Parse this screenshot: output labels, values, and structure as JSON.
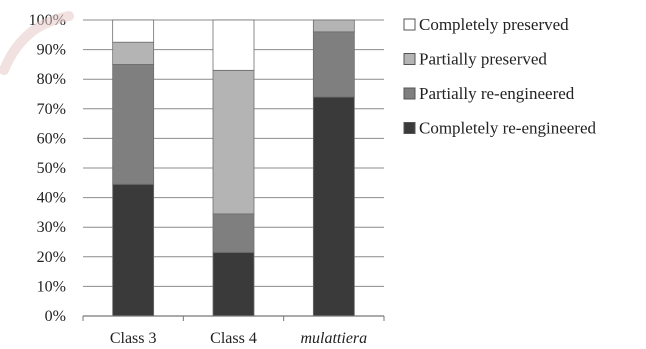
{
  "chart_data": {
    "type": "bar",
    "stacked": true,
    "percent": true,
    "categories": [
      "Class 3",
      "Class 4",
      "mulattiera"
    ],
    "category_styles": [
      "normal",
      "normal",
      "italic"
    ],
    "series": [
      {
        "name": "Completely re-engineered",
        "color": "#3a3a3a",
        "values": [
          44.5,
          21.5,
          74
        ]
      },
      {
        "name": "Partially re-engineered",
        "color": "#7f7f7f",
        "values": [
          40.5,
          13,
          22
        ]
      },
      {
        "name": "Partially preserved",
        "color": "#b4b4b4",
        "values": [
          7.5,
          48.5,
          4
        ]
      },
      {
        "name": "Completely preserved",
        "color": "#ffffff",
        "values": [
          7.5,
          17,
          0
        ]
      }
    ],
    "legend_order": [
      "Completely preserved",
      "Partially preserved",
      "Partially re-engineered",
      "Completely re-engineered"
    ],
    "yticks": [
      "0%",
      "10%",
      "20%",
      "30%",
      "40%",
      "50%",
      "60%",
      "70%",
      "80%",
      "90%",
      "100%"
    ],
    "ylim": [
      0,
      100
    ],
    "grid": true,
    "legend_position": "right",
    "title": "",
    "xlabel": "",
    "ylabel": ""
  }
}
